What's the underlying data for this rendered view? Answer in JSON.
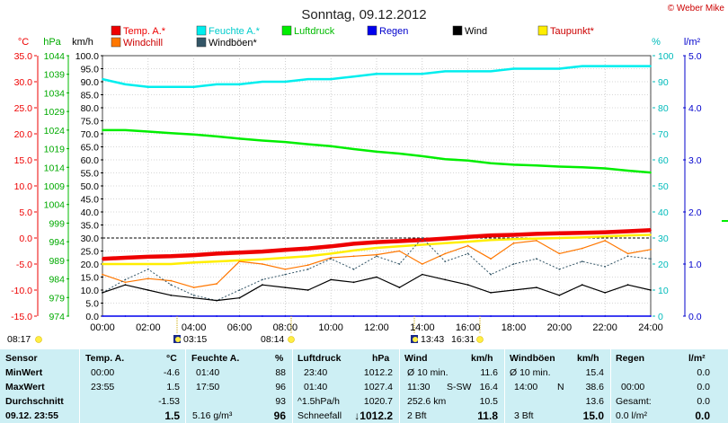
{
  "header": {
    "title": "Sonntag, 09.12.2012",
    "copyright": "© Weber Mike"
  },
  "legend": [
    {
      "label": "Temp. A.*",
      "color": "#ee0000",
      "label_color": "#ee0000"
    },
    {
      "label": "Feuchte A.*",
      "color": "#00eeee",
      "label_color": "#00cccc"
    },
    {
      "label": "Luftdruck",
      "color": "#00ee00",
      "label_color": "#00bb00"
    },
    {
      "label": "Regen",
      "color": "#0000ee",
      "label_color": "#0000cc"
    },
    {
      "label": "Wind",
      "color": "#000000",
      "label_color": "#000000"
    },
    {
      "label": "Taupunkt*",
      "color": "#ffee00",
      "label_color": "#cc0000"
    },
    {
      "label": "Windchill",
      "color": "#ff7700",
      "label_color": "#cc0000"
    },
    {
      "label": "Windböen*",
      "color": "#335566",
      "label_color": "#000000"
    }
  ],
  "chart_data": {
    "type": "line",
    "title": "Sonntag, 09.12.2012",
    "axes": {
      "temp": {
        "unit": "°C",
        "min": -15,
        "max": 35,
        "step": 5,
        "ticks": [
          "35.0",
          "30.0",
          "25.0",
          "20.0",
          "15.0",
          "10.0",
          "5.0",
          "0.0",
          "-5.0",
          "-10.0",
          "-15.0"
        ]
      },
      "pressure": {
        "unit": "hPa",
        "min": 974,
        "max": 1044,
        "ticks": [
          "1044",
          "1039",
          "1034",
          "1029",
          "1024",
          "1019",
          "1014",
          "1009",
          "1004",
          "999",
          "994",
          "989",
          "984",
          "979",
          "974"
        ]
      },
      "wind": {
        "unit": "km/h",
        "min": 0,
        "max": 100,
        "ticks": [
          "100.0",
          "95.0",
          "90.0",
          "85.0",
          "80.0",
          "75.0",
          "70.0",
          "65.0",
          "60.0",
          "55.0",
          "50.0",
          "45.0",
          "40.0",
          "35.0",
          "30.0",
          "25.0",
          "20.0",
          "15.0",
          "10.0",
          "5.0",
          "0.0"
        ]
      },
      "humidity": {
        "unit": "%",
        "min": 0,
        "max": 100,
        "ticks": [
          "100",
          "90",
          "80",
          "70",
          "60",
          "50",
          "40",
          "30",
          "20",
          "10",
          "0"
        ]
      },
      "rain": {
        "unit": "l/m²",
        "min": 0,
        "max": 5,
        "ticks": [
          "5.0",
          "4.0",
          "3.0",
          "2.0",
          "1.0",
          "0.0"
        ]
      },
      "x": {
        "min": 0,
        "max": 24,
        "ticks": [
          "00:00",
          "02:00",
          "04:00",
          "06:00",
          "08:00",
          "10:00",
          "12:00",
          "14:00",
          "16:00",
          "18:00",
          "20:00",
          "22:00",
          "24:00"
        ]
      }
    },
    "x_hours": [
      0,
      1,
      2,
      3,
      4,
      5,
      6,
      7,
      8,
      9,
      10,
      11,
      12,
      13,
      14,
      15,
      16,
      17,
      18,
      19,
      20,
      21,
      22,
      23,
      24
    ],
    "series": [
      {
        "name": "Feuchte A.*",
        "axis": "humidity",
        "color": "#00eeee",
        "values": [
          91,
          89,
          88,
          88,
          88,
          89,
          89,
          90,
          90,
          91,
          91,
          92,
          93,
          93,
          93,
          94,
          94,
          94,
          95,
          95,
          95,
          96,
          96,
          96,
          96
        ]
      },
      {
        "name": "Luftdruck",
        "axis": "pressure",
        "color": "#00ee00",
        "values": [
          1024.0,
          1024.0,
          1023.6,
          1023.2,
          1022.8,
          1022.3,
          1021.7,
          1021.2,
          1020.8,
          1020.2,
          1019.7,
          1018.9,
          1018.2,
          1017.7,
          1017.0,
          1016.2,
          1015.8,
          1015.1,
          1014.7,
          1014.5,
          1014.2,
          1014.0,
          1013.7,
          1013.1,
          1012.6
        ]
      },
      {
        "name": "Temp. A.*",
        "axis": "temp",
        "color": "#ee0000",
        "values": [
          -4.0,
          -3.8,
          -3.6,
          -3.5,
          -3.3,
          -3.0,
          -2.8,
          -2.6,
          -2.3,
          -2.0,
          -1.6,
          -1.1,
          -0.8,
          -0.6,
          -0.4,
          -0.1,
          0.2,
          0.5,
          0.6,
          0.8,
          0.9,
          1.0,
          1.1,
          1.3,
          1.5
        ]
      },
      {
        "name": "Taupunkt*",
        "axis": "temp",
        "color": "#ffee00",
        "values": [
          -5.0,
          -5.0,
          -5.0,
          -5.0,
          -4.7,
          -4.5,
          -4.3,
          -4.1,
          -3.8,
          -3.5,
          -3.0,
          -2.4,
          -1.9,
          -1.6,
          -1.3,
          -1.0,
          -0.7,
          -0.4,
          -0.2,
          -0.1,
          0.0,
          0.1,
          0.3,
          0.5,
          0.6
        ]
      },
      {
        "name": "Windchill",
        "axis": "temp",
        "color": "#ff7700",
        "values": [
          -7.0,
          -8.5,
          -7.8,
          -8.2,
          -9.5,
          -8.8,
          -4.5,
          -5.0,
          -6.0,
          -5.2,
          -3.8,
          -3.5,
          -3.2,
          -2.5,
          -5.0,
          -3.0,
          -1.5,
          -4.0,
          -1.0,
          -0.5,
          -3.0,
          -2.0,
          -0.5,
          -3.0,
          -2.2
        ]
      },
      {
        "name": "Windböen*",
        "axis": "wind",
        "color": "#335566",
        "values": [
          9,
          14,
          18,
          12,
          8,
          6,
          10,
          14,
          16,
          18,
          22,
          18,
          23,
          20,
          30,
          21,
          24,
          16,
          20,
          22,
          18,
          21,
          19,
          23,
          22
        ]
      },
      {
        "name": "Wind",
        "axis": "wind",
        "color": "#000000",
        "values": [
          9,
          12,
          10,
          8,
          7,
          6,
          7,
          12,
          11,
          10,
          14,
          13,
          15,
          11,
          16,
          14,
          12,
          9,
          10,
          11,
          8,
          12,
          9,
          12,
          10
        ]
      },
      {
        "name": "Regen",
        "axis": "rain",
        "color": "#0000ee",
        "values": [
          0,
          0,
          0,
          0,
          0,
          0,
          0,
          0,
          0,
          0,
          0,
          0,
          0,
          0,
          0,
          0,
          0,
          0,
          0,
          0,
          0,
          0,
          0,
          0,
          0
        ]
      }
    ],
    "sun_markers": [
      {
        "rise_label": "08:17",
        "set_label": "16:31"
      }
    ],
    "moon_markers": [
      {
        "label": "03:15"
      },
      {
        "label": "08:14"
      },
      {
        "label": "13:43"
      }
    ]
  },
  "stats": {
    "row_labels": [
      "Sensor",
      "MinWert",
      "MaxWert",
      "Durchschnitt",
      "09.12.  23:55"
    ],
    "temp": {
      "header": "Temp. A.",
      "unit": "°C",
      "rows": [
        [
          "00:00",
          "-4.6"
        ],
        [
          "23:55",
          "1.5"
        ],
        [
          "",
          "-1.53"
        ],
        [
          "",
          "1.5"
        ]
      ]
    },
    "humidity": {
      "header": "Feuchte A.",
      "unit": "%",
      "rows": [
        [
          "01:40",
          "88"
        ],
        [
          "17:50",
          "96"
        ],
        [
          "",
          "93"
        ],
        [
          "5.16 g/m³",
          "96"
        ]
      ]
    },
    "pressure": {
      "header": "Luftdruck",
      "unit": "hPa",
      "rows": [
        [
          "23:40",
          "1012.2"
        ],
        [
          "01:40",
          "1027.4"
        ],
        [
          "^1.5hPa/h",
          "1020.7"
        ],
        [
          "Schneefall",
          "↓1012.2"
        ]
      ]
    },
    "wind": {
      "header": "Wind",
      "unit": "km/h",
      "rows": [
        [
          "Ø 10 min.",
          "",
          "11.6"
        ],
        [
          "11:30",
          "S-SW",
          "16.4"
        ],
        [
          "252.6 km",
          "",
          "10.5"
        ],
        [
          "2 Bft",
          "",
          "11.8"
        ]
      ]
    },
    "gusts": {
      "header": "Windböen",
      "unit": "km/h",
      "rows": [
        [
          "Ø 10 min.",
          "",
          "15.4"
        ],
        [
          "14:00",
          "N",
          "38.6"
        ],
        [
          "",
          "",
          "13.6"
        ],
        [
          "3 Bft",
          "",
          "15.0"
        ]
      ]
    },
    "rain": {
      "header": "Regen",
      "unit": "l/m²",
      "rows": [
        [
          "",
          "0.0"
        ],
        [
          "00:00",
          "0.0"
        ],
        [
          "Gesamt:",
          "0.0"
        ],
        [
          "0.0 l/m²",
          "0.0"
        ]
      ]
    }
  }
}
